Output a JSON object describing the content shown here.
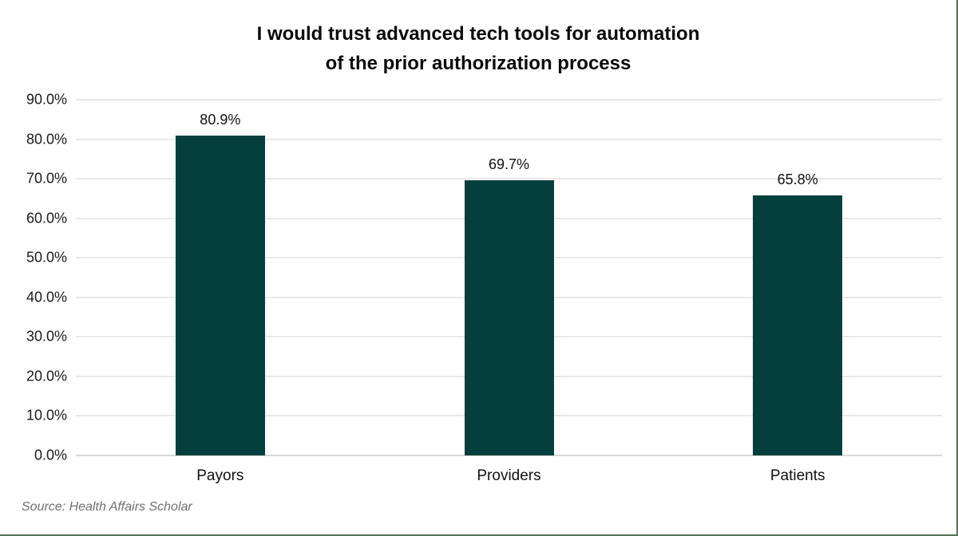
{
  "chart_data": {
    "type": "bar",
    "title_lines": [
      "I would trust advanced tech tools for automation",
      "of the prior authorization process"
    ],
    "categories": [
      "Payors",
      "Providers",
      "Patients"
    ],
    "values": [
      80.9,
      69.7,
      65.8
    ],
    "value_labels": [
      "80.9%",
      "69.7%",
      "65.8%"
    ],
    "ytick_values": [
      0,
      10,
      20,
      30,
      40,
      50,
      60,
      70,
      80,
      90
    ],
    "ytick_labels": [
      "0.0%",
      "10.0%",
      "20.0%",
      "30.0%",
      "40.0%",
      "50.0%",
      "60.0%",
      "70.0%",
      "80.0%",
      "90.0%"
    ],
    "ylim": [
      0,
      90
    ],
    "grid": true,
    "legend": "none",
    "xlabel": "",
    "ylabel": "",
    "bar_color": "#043F3E"
  },
  "source": {
    "text": "Source: Health Affairs Scholar"
  },
  "colors": {
    "bar": "#043F3E",
    "gridline": "#e9e9e9",
    "baseline": "#d9d9d9",
    "frame_border": "#567257",
    "source_text": "#6f6f6f"
  }
}
